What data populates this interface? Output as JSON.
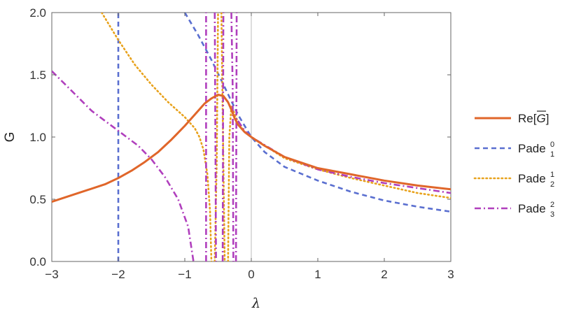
{
  "chart_data": {
    "type": "line",
    "title": "",
    "xlabel": "λ",
    "ylabel": "G",
    "xlim": [
      -3,
      3
    ],
    "ylim": [
      0,
      2
    ],
    "x_ticks": [
      -3,
      -2,
      -1,
      0,
      1,
      2,
      3
    ],
    "x_tick_labels": [
      "−3",
      "−2",
      "−1",
      "0",
      "1",
      "2",
      "3"
    ],
    "y_ticks": [
      0,
      0.5,
      1,
      1.5,
      2
    ],
    "y_tick_labels": [
      "0.0",
      "0.5",
      "1.0",
      "1.5",
      "2.0"
    ],
    "grid": false,
    "legend_position": "right",
    "series": [
      {
        "name": "Re[G]",
        "legend": {
          "base": "Re[",
          "overlined": "G",
          "close": "]"
        },
        "color": "#e0662a",
        "style": "solid",
        "segments": [
          [
            [
              -3,
              0.48
            ],
            [
              -2.6,
              0.55
            ],
            [
              -2.2,
              0.62
            ],
            [
              -2.0,
              0.67
            ],
            [
              -1.8,
              0.73
            ],
            [
              -1.6,
              0.8
            ],
            [
              -1.4,
              0.88
            ],
            [
              -1.2,
              0.98
            ],
            [
              -1.0,
              1.09
            ],
            [
              -0.8,
              1.21
            ],
            [
              -0.7,
              1.27
            ],
            [
              -0.6,
              1.31
            ],
            [
              -0.5,
              1.34
            ],
            [
              -0.42,
              1.33
            ],
            [
              -0.35,
              1.28
            ],
            [
              -0.3,
              1.22
            ],
            [
              -0.25,
              1.15
            ],
            [
              -0.2,
              1.1
            ],
            [
              -0.1,
              1.04
            ],
            [
              0,
              1.0
            ],
            [
              0.2,
              0.93
            ],
            [
              0.5,
              0.84
            ],
            [
              1.0,
              0.75
            ],
            [
              1.5,
              0.7
            ],
            [
              2.0,
              0.65
            ],
            [
              2.5,
              0.61
            ],
            [
              3.0,
              0.58
            ]
          ]
        ]
      },
      {
        "name": "Pade_1^0",
        "legend": {
          "base": "Pade",
          "sub": "1",
          "sup": "0"
        },
        "color": "#5a6fd0",
        "style": "dashed",
        "segments": [
          [
            [
              -2.0,
              0.0
            ],
            [
              -2.0,
              2.0
            ]
          ],
          [
            [
              -1.0,
              2.0
            ],
            [
              -0.8,
              1.82
            ],
            [
              -0.6,
              1.62
            ],
            [
              -0.4,
              1.4
            ],
            [
              -0.2,
              1.18
            ],
            [
              0,
              1.0
            ],
            [
              0.2,
              0.88
            ],
            [
              0.5,
              0.76
            ],
            [
              1.0,
              0.65
            ],
            [
              1.5,
              0.56
            ],
            [
              2.0,
              0.49
            ],
            [
              2.5,
              0.44
            ],
            [
              3.0,
              0.4
            ]
          ]
        ]
      },
      {
        "name": "Pade_2^1",
        "legend": {
          "base": "Pade",
          "sub": "2",
          "sup": "1"
        },
        "color": "#e8a21c",
        "style": "dotted",
        "segments": [
          [
            [
              -2.25,
              2.0
            ],
            [
              -2.0,
              1.78
            ],
            [
              -1.75,
              1.58
            ],
            [
              -1.5,
              1.42
            ],
            [
              -1.25,
              1.28
            ],
            [
              -1.0,
              1.16
            ],
            [
              -0.85,
              1.07
            ],
            [
              -0.78,
              1.0
            ],
            [
              -0.72,
              0.9
            ],
            [
              -0.66,
              0.7
            ],
            [
              -0.62,
              0.4
            ],
            [
              -0.6,
              0.0
            ]
          ],
          [
            [
              -0.55,
              0.0
            ],
            [
              -0.52,
              0.8
            ],
            [
              -0.5,
              2.0
            ]
          ],
          [
            [
              -0.45,
              2.0
            ],
            [
              -0.43,
              1.2
            ],
            [
              -0.4,
              0.0
            ]
          ],
          [
            [
              -0.35,
              0.0
            ],
            [
              -0.33,
              1.0
            ],
            [
              -0.3,
              1.25
            ],
            [
              -0.2,
              1.12
            ],
            [
              -0.1,
              1.04
            ],
            [
              0,
              1.0
            ],
            [
              0.5,
              0.83
            ],
            [
              1.0,
              0.74
            ],
            [
              1.5,
              0.67
            ],
            [
              2.0,
              0.61
            ],
            [
              2.5,
              0.55
            ],
            [
              3.0,
              0.51
            ]
          ]
        ]
      },
      {
        "name": "Pade_3^2",
        "legend": {
          "base": "Pade",
          "sub": "3",
          "sup": "2"
        },
        "color": "#b03fbd",
        "style": "dashdot",
        "segments": [
          [
            [
              -3.0,
              1.53
            ],
            [
              -2.7,
              1.37
            ],
            [
              -2.4,
              1.21
            ],
            [
              -2.0,
              1.05
            ],
            [
              -1.7,
              0.93
            ],
            [
              -1.5,
              0.82
            ],
            [
              -1.3,
              0.68
            ],
            [
              -1.1,
              0.5
            ],
            [
              -0.95,
              0.28
            ],
            [
              -0.87,
              0.0
            ]
          ],
          [
            [
              -0.68,
              0.0
            ],
            [
              -0.68,
              2.0
            ]
          ],
          [
            [
              -0.55,
              2.0
            ],
            [
              -0.53,
              0.0
            ]
          ],
          [
            [
              -0.43,
              0.0
            ],
            [
              -0.42,
              2.0
            ]
          ],
          [
            [
              -0.3,
              2.0
            ],
            [
              -0.28,
              1.4
            ],
            [
              -0.27,
              0.0
            ]
          ],
          [
            [
              -0.23,
              0.0
            ],
            [
              -0.22,
              2.0
            ]
          ],
          [
            [
              -0.2,
              1.13
            ],
            [
              -0.1,
              1.05
            ],
            [
              0,
              1.0
            ],
            [
              0.5,
              0.84
            ],
            [
              1.0,
              0.74
            ],
            [
              1.5,
              0.68
            ],
            [
              2.0,
              0.63
            ],
            [
              2.5,
              0.59
            ],
            [
              3.0,
              0.55
            ]
          ]
        ]
      }
    ]
  }
}
